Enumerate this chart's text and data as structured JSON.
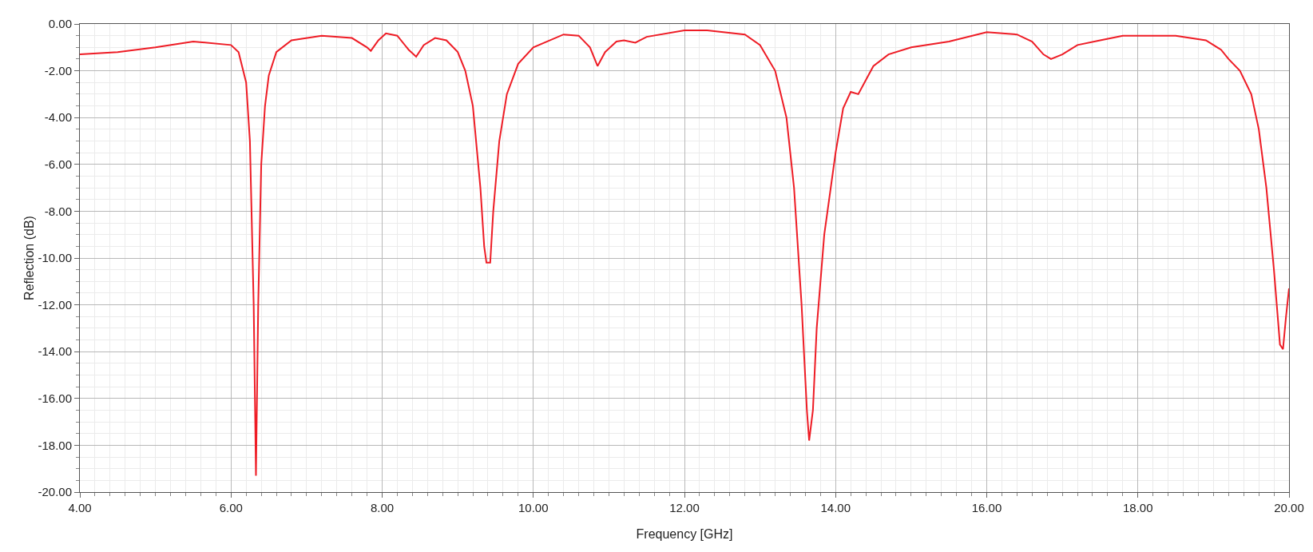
{
  "chart_data": {
    "type": "line",
    "xlabel": "Frequency [GHz]",
    "ylabel": "Reflection (dB)",
    "x": [
      4,
      4.5,
      5,
      5.5,
      6,
      6.1,
      6.2,
      6.25,
      6.3,
      6.33,
      6.36,
      6.4,
      6.45,
      6.5,
      6.6,
      6.8,
      7.2,
      7.6,
      7.8,
      7.85,
      7.95,
      8.05,
      8.2,
      8.35,
      8.45,
      8.55,
      8.7,
      8.85,
      9,
      9.1,
      9.2,
      9.3,
      9.35,
      9.38,
      9.43,
      9.47,
      9.55,
      9.65,
      9.8,
      10,
      10.4,
      10.6,
      10.75,
      10.85,
      10.95,
      11.1,
      11.2,
      11.35,
      11.5,
      12,
      12.3,
      12.8,
      13,
      13.2,
      13.35,
      13.45,
      13.55,
      13.62,
      13.65,
      13.7,
      13.75,
      13.85,
      14,
      14.1,
      14.2,
      14.3,
      14.4,
      14.5,
      14.7,
      15,
      15.5,
      16,
      16.4,
      16.6,
      16.75,
      16.85,
      17,
      17.2,
      17.5,
      17.8,
      18.5,
      18.9,
      19.1,
      19.2,
      19.35,
      19.5,
      19.6,
      19.7,
      19.8,
      19.88,
      19.92,
      19.96,
      20
    ],
    "series": [
      {
        "color": "#ee1c25",
        "values": [
          -1.3,
          -1.2,
          -1.0,
          -0.75,
          -0.9,
          -1.2,
          -2.5,
          -5,
          -12,
          -19.3,
          -12,
          -6,
          -3.5,
          -2.2,
          -1.2,
          -0.7,
          -0.5,
          -0.6,
          -1.0,
          -1.15,
          -0.7,
          -0.4,
          -0.5,
          -1.1,
          -1.4,
          -0.9,
          -0.6,
          -0.7,
          -1.2,
          -2.0,
          -3.5,
          -7,
          -9.5,
          -10.2,
          -10.2,
          -8,
          -5,
          -3,
          -1.7,
          -1.0,
          -0.45,
          -0.5,
          -1.0,
          -1.8,
          -1.2,
          -0.75,
          -0.7,
          -0.8,
          -0.55,
          -0.27,
          -0.27,
          -0.45,
          -0.9,
          -2.0,
          -4,
          -7,
          -12,
          -16.5,
          -17.8,
          -16.5,
          -13,
          -9,
          -5.5,
          -3.6,
          -2.9,
          -3.0,
          -2.4,
          -1.8,
          -1.3,
          -1.0,
          -0.75,
          -0.35,
          -0.45,
          -0.75,
          -1.3,
          -1.5,
          -1.3,
          -0.9,
          -0.7,
          -0.5,
          -0.5,
          -0.7,
          -1.1,
          -1.5,
          -2.0,
          -3.0,
          -4.5,
          -7,
          -10.5,
          -13.7,
          -13.9,
          -12.5,
          -11.3
        ]
      }
    ],
    "xlim": [
      4,
      20
    ],
    "xticks": [
      {
        "value": 4,
        "label": "4.00"
      },
      {
        "value": 6,
        "label": "6.00"
      },
      {
        "value": 8,
        "label": "8.00"
      },
      {
        "value": 10,
        "label": "10.00"
      },
      {
        "value": 12,
        "label": "12.00"
      },
      {
        "value": 14,
        "label": "14.00"
      },
      {
        "value": 16,
        "label": "16.00"
      },
      {
        "value": 18,
        "label": "18.00"
      },
      {
        "value": 20,
        "label": "20.00"
      }
    ],
    "ylim": [
      -20,
      0
    ],
    "yticks": [
      {
        "value": 0,
        "label": "0.00"
      },
      {
        "value": -2,
        "label": "-2.00"
      },
      {
        "value": -4,
        "label": "-4.00"
      },
      {
        "value": -6,
        "label": "-6.00"
      },
      {
        "value": -8,
        "label": "-8.00"
      },
      {
        "value": -10,
        "label": "-10.00"
      },
      {
        "value": -12,
        "label": "-12.00"
      },
      {
        "value": -14,
        "label": "-14.00"
      },
      {
        "value": -16,
        "label": "-16.00"
      },
      {
        "value": -18,
        "label": "-18.00"
      },
      {
        "value": -20,
        "label": "-20.00"
      }
    ],
    "grid": true,
    "marker": "none",
    "line_style": "solid"
  }
}
